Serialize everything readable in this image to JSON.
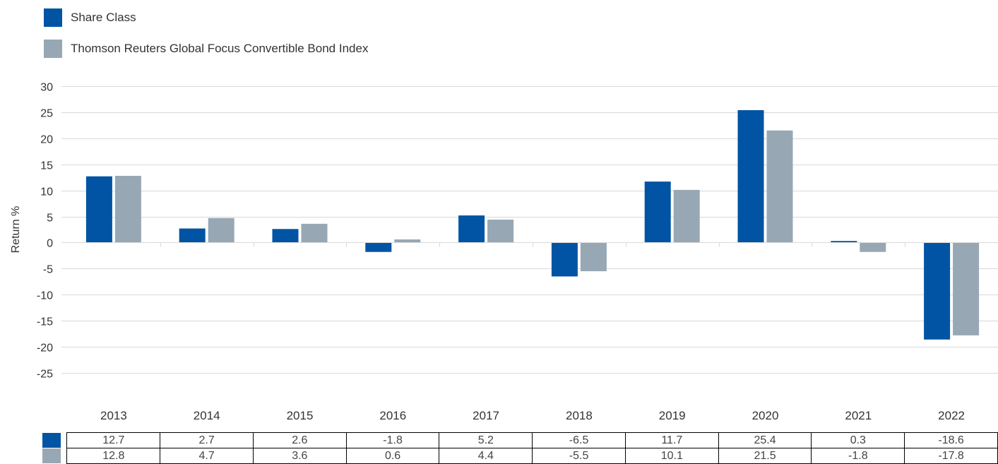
{
  "colors": {
    "share_class": "#0054A3",
    "index": "#97A8B4"
  },
  "legend": [
    {
      "label": "Share Class",
      "color": "#0054A3"
    },
    {
      "label": "Thomson Reuters Global Focus Convertible Bond Index",
      "color": "#97A8B4"
    }
  ],
  "chart_data": {
    "type": "bar",
    "title": "",
    "xlabel": "",
    "ylabel": "Return %",
    "ylim": [
      -25,
      30
    ],
    "yticks": [
      30,
      25,
      20,
      15,
      10,
      5,
      0,
      -5,
      -10,
      -15,
      -20,
      -25
    ],
    "grid": true,
    "legend_position": "top-left",
    "categories": [
      "2013",
      "2014",
      "2015",
      "2016",
      "2017",
      "2018",
      "2019",
      "2020",
      "2021",
      "2022"
    ],
    "series": [
      {
        "name": "Share Class",
        "color": "#0054A3",
        "values": [
          12.7,
          2.7,
          2.6,
          -1.8,
          5.2,
          -6.5,
          11.7,
          25.4,
          0.3,
          -18.6
        ]
      },
      {
        "name": "Thomson Reuters Global Focus Convertible Bond Index",
        "color": "#97A8B4",
        "values": [
          12.8,
          4.7,
          3.6,
          0.6,
          4.4,
          -5.5,
          10.1,
          21.5,
          -1.8,
          -17.8
        ]
      }
    ]
  }
}
